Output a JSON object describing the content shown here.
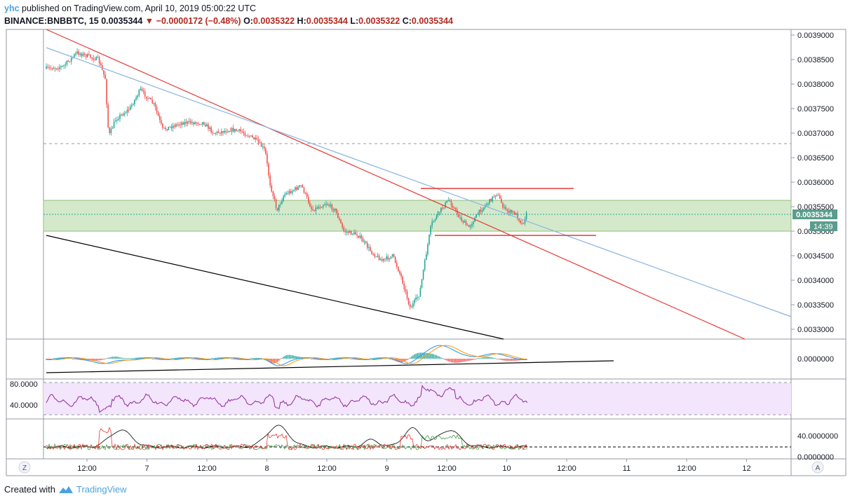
{
  "header": {
    "user": "yhc",
    "published_text": "published on TradingView.com, April 10, 2019 05:00:22 UTC",
    "symbol": "BINANCE:BNBBTC, 15",
    "last": "0.0035344",
    "change": "−0.0000172 (−0.48%)",
    "o_label": "O:",
    "o_value": "0.0035322",
    "h_label": "H:",
    "h_value": "0.0035344",
    "l_label": "L:",
    "l_value": "0.0035322",
    "c_label": "C:",
    "c_value": "0.0035344"
  },
  "price_axis": {
    "ticks": [
      "0.0039000",
      "0.0038500",
      "0.0038000",
      "0.0037500",
      "0.0037000",
      "0.0036500",
      "0.0036000",
      "0.0035500",
      "0.0035000",
      "0.0034500",
      "0.0034000",
      "0.0033500",
      "0.0033000"
    ],
    "current_price": "0.0035344",
    "countdown": "14:39"
  },
  "macd_axis": {
    "ticks": [
      "0.0000000"
    ]
  },
  "rsi_axis": {
    "ticks": [
      "80.0000",
      "40.0000"
    ]
  },
  "dmi_axis": {
    "ticks": [
      "40.0000000",
      "0.0000000"
    ]
  },
  "time_axis": {
    "labels": [
      "12:00",
      "7",
      "12:00",
      "8",
      "12:00",
      "9",
      "12:00",
      "10",
      "12:00",
      "11",
      "12:00",
      "12"
    ]
  },
  "corner_buttons": {
    "left": "Z",
    "right": "A"
  },
  "footer": {
    "created_with": "Created with",
    "brand": "TradingView"
  },
  "colors": {
    "up": "#26a69a",
    "down": "#ef5350",
    "grid": "#e6e6e6",
    "zone_fill": "#c5e1b8",
    "rsi_fill": "#f3e5fb",
    "rsi_line": "#8e2b9e",
    "trend_red": "#e53935",
    "trend_blue": "#8ab4e0",
    "trend_black": "#000000",
    "macd_line": "#2196f3",
    "signal_line": "#ff9800",
    "price_label": "#5b9d8d"
  }
}
